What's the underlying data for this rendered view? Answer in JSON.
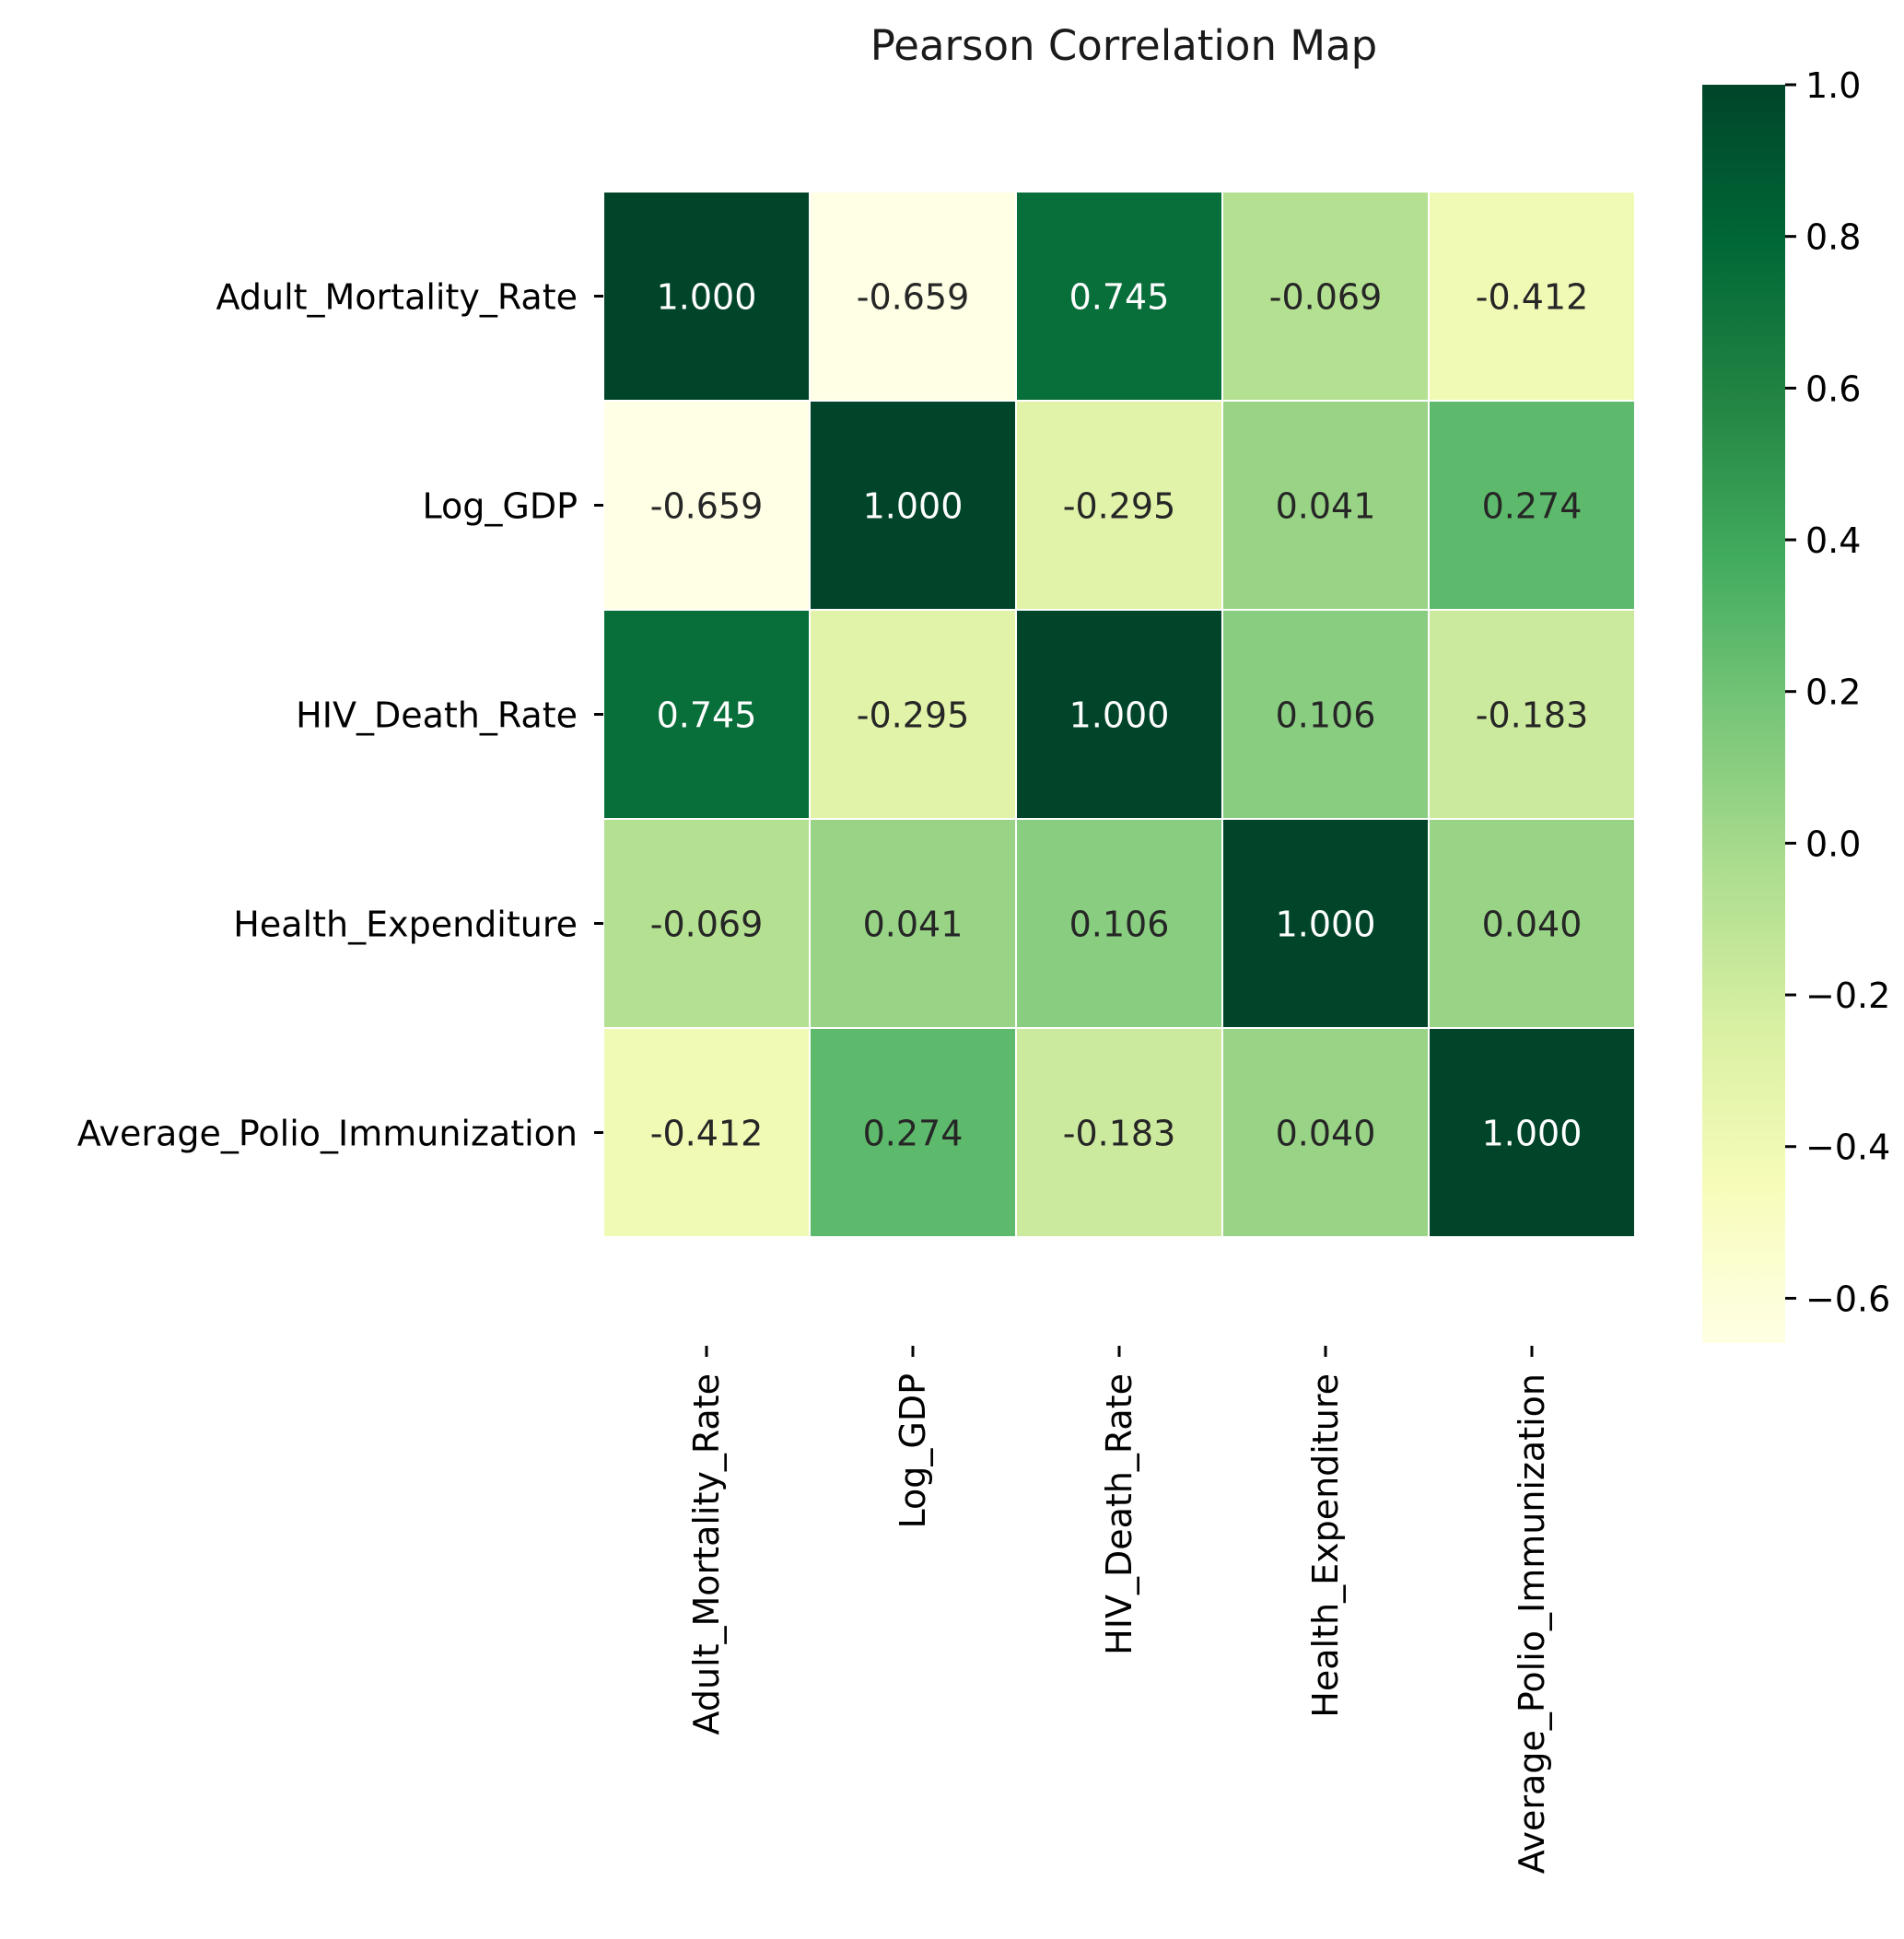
{
  "chart_data": {
    "type": "heatmap",
    "title": "Pearson Correlation Map",
    "rows": [
      "Adult_Mortality_Rate",
      "Log_GDP",
      "HIV_Death_Rate",
      "Health_Expenditure",
      "Average_Polio_Immunization"
    ],
    "columns": [
      "Adult_Mortality_Rate",
      "Log_GDP",
      "HIV_Death_Rate",
      "Health_Expenditure",
      "Average_Polio_Immunization"
    ],
    "values": [
      [
        1.0,
        -0.659,
        0.745,
        -0.069,
        -0.412
      ],
      [
        -0.659,
        1.0,
        -0.295,
        0.041,
        0.274
      ],
      [
        0.745,
        -0.295,
        1.0,
        0.106,
        -0.183
      ],
      [
        -0.069,
        0.041,
        0.106,
        1.0,
        0.04
      ],
      [
        -0.412,
        0.274,
        -0.183,
        0.04,
        1.0
      ]
    ],
    "value_format": "3 decimals",
    "colormap": "YlGn",
    "color_range": [
      -0.659,
      1.0
    ],
    "colorbar_ticks": [
      1.0,
      0.8,
      0.6,
      0.4,
      0.2,
      0.0,
      -0.2,
      -0.4,
      -0.6
    ],
    "colorbar_tick_labels": [
      "1.0",
      "0.8",
      "0.6",
      "0.4",
      "0.2",
      "0.0",
      "−0.2",
      "−0.4",
      "−0.6"
    ],
    "cell_border_color": "#ffffff"
  }
}
